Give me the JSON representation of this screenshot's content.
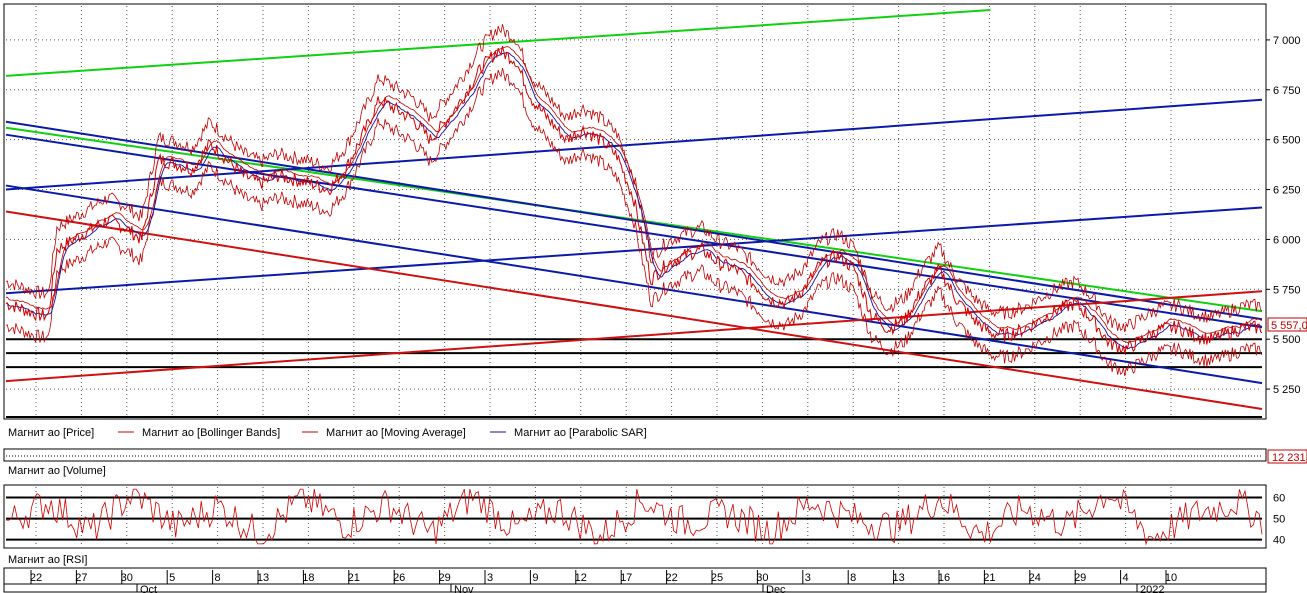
{
  "legend_main": {
    "price": "Магнит ао [Price]",
    "bb": "Магнит ао [Bollinger Bands]",
    "ma": "Магнит ао [Moving Average]",
    "sar": "Магнит ао [Parabolic SAR]"
  },
  "legend_volume": "Магнит ао [Volume]",
  "legend_rsi": "Магнит ао [RSI]",
  "colors": {
    "price": "#d00000",
    "bb": "#c00000",
    "ma": "#c00000",
    "sar": "#1010a0",
    "green": "#10d010",
    "blue": "#0a1aa8",
    "red": "#d01010",
    "black": "#000000"
  },
  "chart_data": {
    "type": "line",
    "y_ticks": [
      "7 000",
      "6 750",
      "6 500",
      "6 250",
      "6 000",
      "5 750",
      "5 500",
      "5 250"
    ],
    "y_tick_values": [
      7000,
      6750,
      6500,
      6250,
      6000,
      5750,
      5500,
      5250
    ],
    "ylim": [
      5110,
      7170
    ],
    "last_price_label": "5 557,0",
    "volume_label": "12 231",
    "rsi_ticks": [
      "60",
      "50",
      "40"
    ],
    "rsi_tick_values": [
      60,
      50,
      40
    ],
    "rsi_ylim": [
      37,
      65
    ],
    "x_day_labels": [
      "22",
      "27",
      "30",
      "5",
      "8",
      "13",
      "18",
      "21",
      "26",
      "29",
      "3",
      "9",
      "12",
      "17",
      "22",
      "25",
      "30",
      "3",
      "8",
      "13",
      "16",
      "21",
      "24",
      "29",
      "4",
      "10"
    ],
    "month_labels": [
      "Oct",
      "Nov",
      "Dec",
      "2022"
    ],
    "price_series": [
      [
        0,
        5680
      ],
      [
        2,
        5650
      ],
      [
        4,
        5620
      ],
      [
        5,
        5620
      ],
      [
        6,
        5950
      ],
      [
        8,
        6000
      ],
      [
        10,
        6050
      ],
      [
        12,
        6100
      ],
      [
        14,
        6060
      ],
      [
        16,
        6000
      ],
      [
        18,
        6400
      ],
      [
        20,
        6380
      ],
      [
        22,
        6350
      ],
      [
        24,
        6480
      ],
      [
        26,
        6400
      ],
      [
        28,
        6320
      ],
      [
        30,
        6280
      ],
      [
        32,
        6320
      ],
      [
        34,
        6300
      ],
      [
        36,
        6280
      ],
      [
        38,
        6250
      ],
      [
        40,
        6350
      ],
      [
        42,
        6520
      ],
      [
        44,
        6700
      ],
      [
        46,
        6650
      ],
      [
        48,
        6600
      ],
      [
        50,
        6500
      ],
      [
        52,
        6600
      ],
      [
        54,
        6720
      ],
      [
        56,
        6860
      ],
      [
        58,
        6950
      ],
      [
        60,
        6900
      ],
      [
        62,
        6700
      ],
      [
        64,
        6600
      ],
      [
        66,
        6500
      ],
      [
        68,
        6550
      ],
      [
        70,
        6500
      ],
      [
        72,
        6420
      ],
      [
        74,
        6200
      ],
      [
        76,
        5800
      ],
      [
        78,
        5880
      ],
      [
        80,
        5920
      ],
      [
        82,
        5950
      ],
      [
        84,
        5880
      ],
      [
        86,
        5850
      ],
      [
        88,
        5780
      ],
      [
        90,
        5700
      ],
      [
        92,
        5680
      ],
      [
        94,
        5750
      ],
      [
        96,
        5880
      ],
      [
        98,
        5920
      ],
      [
        100,
        5850
      ],
      [
        102,
        5620
      ],
      [
        104,
        5550
      ],
      [
        106,
        5600
      ],
      [
        108,
        5750
      ],
      [
        110,
        5850
      ],
      [
        112,
        5700
      ],
      [
        114,
        5600
      ],
      [
        116,
        5530
      ],
      [
        118,
        5520
      ],
      [
        120,
        5550
      ],
      [
        122,
        5600
      ],
      [
        124,
        5650
      ],
      [
        126,
        5680
      ],
      [
        128,
        5600
      ],
      [
        130,
        5480
      ],
      [
        132,
        5450
      ],
      [
        134,
        5500
      ],
      [
        136,
        5550
      ],
      [
        138,
        5560
      ],
      [
        140,
        5520
      ],
      [
        142,
        5500
      ],
      [
        144,
        5530
      ],
      [
        146,
        5560
      ],
      [
        148,
        5557
      ]
    ],
    "rsi_series": [
      [
        0,
        48
      ],
      [
        5,
        58
      ],
      [
        10,
        44
      ],
      [
        15,
        62
      ],
      [
        20,
        46
      ],
      [
        25,
        56
      ],
      [
        30,
        42
      ],
      [
        35,
        60
      ],
      [
        40,
        47
      ],
      [
        45,
        57
      ],
      [
        50,
        43
      ],
      [
        55,
        61
      ],
      [
        60,
        45
      ],
      [
        65,
        55
      ],
      [
        70,
        41
      ],
      [
        75,
        59
      ],
      [
        80,
        48
      ],
      [
        85,
        53
      ],
      [
        90,
        44
      ],
      [
        95,
        58
      ],
      [
        100,
        50
      ],
      [
        105,
        46
      ],
      [
        110,
        60
      ],
      [
        115,
        42
      ],
      [
        120,
        55
      ],
      [
        125,
        47
      ],
      [
        130,
        63
      ],
      [
        135,
        41
      ],
      [
        140,
        52
      ],
      [
        145,
        58
      ],
      [
        148,
        50
      ]
    ]
  }
}
